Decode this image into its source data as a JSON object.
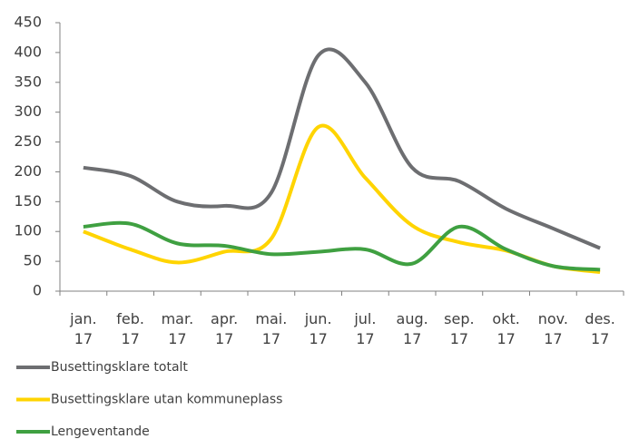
{
  "chart_data": {
    "type": "line",
    "categories": [
      "jan.\n17",
      "feb.\n17",
      "mar.\n17",
      "apr.\n17",
      "mai.\n17",
      "jun.\n17",
      "jul.\n17",
      "aug.\n17",
      "sep.\n17",
      "okt.\n17",
      "nov.\n17",
      "des.\n17"
    ],
    "series": [
      {
        "name": "Busettingsklare totalt",
        "color": "#6d6e71",
        "values": [
          207,
          193,
          150,
          143,
          165,
          395,
          350,
          207,
          184,
          138,
          105,
          72
        ]
      },
      {
        "name": "Busettingsklare utan kommuneplass",
        "color": "#ffd400",
        "values": [
          100,
          70,
          48,
          66,
          88,
          275,
          190,
          110,
          82,
          68,
          42,
          32
        ]
      },
      {
        "name": "Lengeventande",
        "color": "#3fa041",
        "values": [
          108,
          113,
          80,
          76,
          62,
          66,
          70,
          46,
          108,
          70,
          42,
          36
        ]
      }
    ],
    "ylim": [
      0,
      450
    ],
    "yticks": [
      0,
      50,
      100,
      150,
      200,
      250,
      300,
      350,
      400,
      450
    ],
    "grid": false,
    "legend": "bottom"
  }
}
